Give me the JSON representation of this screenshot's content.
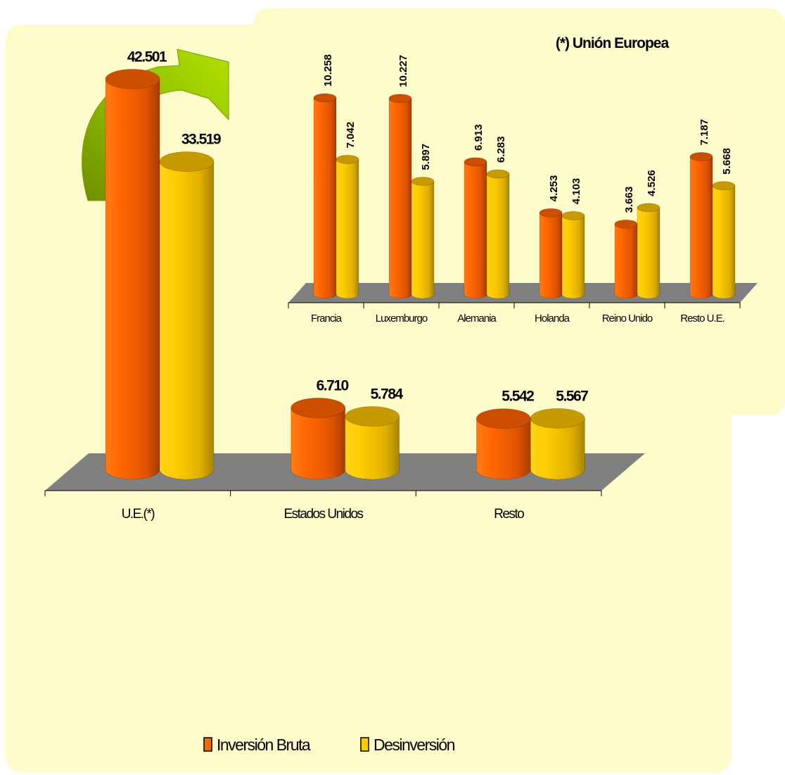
{
  "colors": {
    "background": "#fdfcca",
    "floor": "#808080",
    "inversion": "#ff6600",
    "desinversion": "#ffcc00",
    "arrow": "#99cc00"
  },
  "legend": {
    "items": [
      "Inversión Bruta",
      "Desinversión"
    ],
    "position": "bottom"
  },
  "chart_data": [
    {
      "type": "bar",
      "title": "",
      "xlabel": "",
      "ylabel": "",
      "grid": false,
      "legend_position": "bottom",
      "categories": [
        "U.E.(*)",
        "Estados Unidos",
        "Resto"
      ],
      "series": [
        {
          "name": "Inversión Bruta",
          "values": [
            42501,
            6710,
            5542
          ],
          "labels": [
            "42.501",
            "6.710",
            "5.542"
          ]
        },
        {
          "name": "Desinversión",
          "values": [
            33519,
            5784,
            5567
          ],
          "labels": [
            "33.519",
            "5.784",
            "5.567"
          ]
        }
      ]
    },
    {
      "type": "bar",
      "title": "(*) Unión Europea",
      "xlabel": "",
      "ylabel": "",
      "grid": false,
      "categories": [
        "Francia",
        "Luxemburgo",
        "Alemania",
        "Holanda",
        "Reino Unido",
        "Resto U.E."
      ],
      "series": [
        {
          "name": "Inversión Bruta",
          "values": [
            10258,
            10227,
            6913,
            4253,
            3663,
            7187
          ],
          "labels": [
            "10.258",
            "10.227",
            "6.913",
            "4.253",
            "3.663",
            "7.187"
          ]
        },
        {
          "name": "Desinversión",
          "values": [
            7042,
            5897,
            6283,
            4103,
            4526,
            5668
          ],
          "labels": [
            "7.042",
            "5.897",
            "6.283",
            "4.103",
            "4.526",
            "5.668"
          ]
        }
      ]
    }
  ]
}
